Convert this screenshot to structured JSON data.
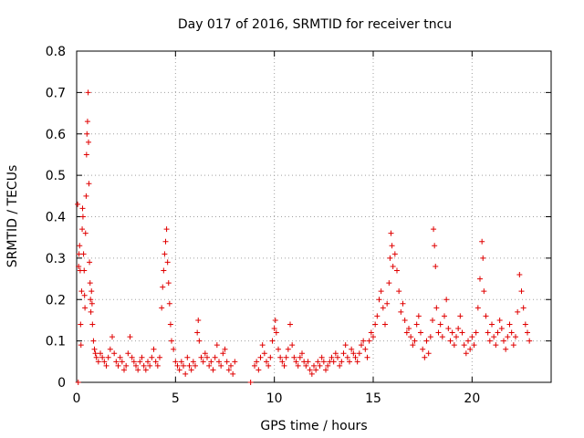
{
  "chart_data": {
    "type": "scatter",
    "title": "Day 017 of 2016, SRMTID for receiver tncu",
    "xlabel": "GPS time / hours",
    "ylabel": "SRMTID / TECUs",
    "xlim": [
      0,
      24
    ],
    "ylim": [
      0,
      0.8
    ],
    "xticks": [
      0,
      5,
      10,
      15,
      20
    ],
    "xtick_labels": [
      "0",
      "5",
      "10",
      "15",
      "20"
    ],
    "yticks": [
      0,
      0.1,
      0.2,
      0.3,
      0.4,
      0.5,
      0.6,
      0.7,
      0.8
    ],
    "ytick_labels": [
      "0",
      "0.1",
      "0.2",
      "0.3",
      "0.4",
      "0.5",
      "0.6",
      "0.7",
      "0.8"
    ],
    "grid": true,
    "marker": "+",
    "color": "#e00000",
    "series": [
      {
        "name": "SRMTID",
        "points": [
          [
            0.05,
            0.43
          ],
          [
            0.08,
            0.0
          ],
          [
            0.1,
            0.28
          ],
          [
            0.12,
            0.31
          ],
          [
            0.15,
            0.33
          ],
          [
            0.18,
            0.27
          ],
          [
            0.2,
            0.14
          ],
          [
            0.22,
            0.09
          ],
          [
            0.25,
            0.22
          ],
          [
            0.28,
            0.37
          ],
          [
            0.3,
            0.42
          ],
          [
            0.32,
            0.4
          ],
          [
            0.35,
            0.31
          ],
          [
            0.38,
            0.27
          ],
          [
            0.4,
            0.21
          ],
          [
            0.42,
            0.18
          ],
          [
            0.45,
            0.36
          ],
          [
            0.48,
            0.45
          ],
          [
            0.5,
            0.55
          ],
          [
            0.52,
            0.6
          ],
          [
            0.55,
            0.63
          ],
          [
            0.58,
            0.7
          ],
          [
            0.6,
            0.58
          ],
          [
            0.62,
            0.48
          ],
          [
            0.65,
            0.29
          ],
          [
            0.68,
            0.24
          ],
          [
            0.7,
            0.2
          ],
          [
            0.72,
            0.17
          ],
          [
            0.75,
            0.22
          ],
          [
            0.78,
            0.19
          ],
          [
            0.8,
            0.14
          ],
          [
            0.85,
            0.1
          ],
          [
            0.9,
            0.08
          ],
          [
            0.95,
            0.07
          ],
          [
            1.0,
            0.06
          ],
          [
            1.1,
            0.05
          ],
          [
            1.2,
            0.07
          ],
          [
            1.3,
            0.06
          ],
          [
            1.4,
            0.05
          ],
          [
            1.5,
            0.04
          ],
          [
            1.6,
            0.06
          ],
          [
            1.7,
            0.08
          ],
          [
            1.8,
            0.11
          ],
          [
            1.9,
            0.07
          ],
          [
            2.0,
            0.05
          ],
          [
            2.1,
            0.04
          ],
          [
            2.2,
            0.06
          ],
          [
            2.3,
            0.05
          ],
          [
            2.4,
            0.03
          ],
          [
            2.5,
            0.04
          ],
          [
            2.6,
            0.07
          ],
          [
            2.7,
            0.11
          ],
          [
            2.8,
            0.06
          ],
          [
            2.9,
            0.05
          ],
          [
            3.0,
            0.04
          ],
          [
            3.1,
            0.03
          ],
          [
            3.2,
            0.05
          ],
          [
            3.3,
            0.06
          ],
          [
            3.4,
            0.04
          ],
          [
            3.5,
            0.03
          ],
          [
            3.6,
            0.05
          ],
          [
            3.7,
            0.04
          ],
          [
            3.8,
            0.06
          ],
          [
            3.9,
            0.08
          ],
          [
            4.0,
            0.05
          ],
          [
            4.1,
            0.04
          ],
          [
            4.2,
            0.06
          ],
          [
            4.3,
            0.18
          ],
          [
            4.35,
            0.23
          ],
          [
            4.4,
            0.27
          ],
          [
            4.45,
            0.31
          ],
          [
            4.5,
            0.34
          ],
          [
            4.55,
            0.37
          ],
          [
            4.6,
            0.29
          ],
          [
            4.65,
            0.24
          ],
          [
            4.7,
            0.19
          ],
          [
            4.75,
            0.14
          ],
          [
            4.8,
            0.1
          ],
          [
            4.9,
            0.08
          ],
          [
            5.0,
            0.05
          ],
          [
            5.1,
            0.04
          ],
          [
            5.2,
            0.03
          ],
          [
            5.3,
            0.05
          ],
          [
            5.4,
            0.04
          ],
          [
            5.5,
            0.02
          ],
          [
            5.6,
            0.06
          ],
          [
            5.7,
            0.04
          ],
          [
            5.8,
            0.03
          ],
          [
            5.9,
            0.05
          ],
          [
            6.0,
            0.04
          ],
          [
            6.1,
            0.12
          ],
          [
            6.15,
            0.15
          ],
          [
            6.2,
            0.1
          ],
          [
            6.3,
            0.06
          ],
          [
            6.4,
            0.05
          ],
          [
            6.5,
            0.07
          ],
          [
            6.6,
            0.06
          ],
          [
            6.7,
            0.04
          ],
          [
            6.8,
            0.05
          ],
          [
            6.9,
            0.03
          ],
          [
            7.0,
            0.06
          ],
          [
            7.1,
            0.09
          ],
          [
            7.2,
            0.05
          ],
          [
            7.3,
            0.04
          ],
          [
            7.4,
            0.07
          ],
          [
            7.5,
            0.08
          ],
          [
            7.6,
            0.05
          ],
          [
            7.7,
            0.03
          ],
          [
            7.8,
            0.04
          ],
          [
            7.9,
            0.02
          ],
          [
            8.0,
            0.05
          ],
          [
            8.8,
            0.0
          ],
          [
            9.0,
            0.04
          ],
          [
            9.1,
            0.05
          ],
          [
            9.2,
            0.03
          ],
          [
            9.3,
            0.06
          ],
          [
            9.4,
            0.09
          ],
          [
            9.5,
            0.07
          ],
          [
            9.6,
            0.05
          ],
          [
            9.7,
            0.04
          ],
          [
            9.8,
            0.06
          ],
          [
            9.9,
            0.1
          ],
          [
            10.0,
            0.13
          ],
          [
            10.05,
            0.15
          ],
          [
            10.1,
            0.12
          ],
          [
            10.2,
            0.08
          ],
          [
            10.3,
            0.06
          ],
          [
            10.4,
            0.05
          ],
          [
            10.5,
            0.04
          ],
          [
            10.6,
            0.06
          ],
          [
            10.7,
            0.08
          ],
          [
            10.8,
            0.14
          ],
          [
            10.9,
            0.09
          ],
          [
            11.0,
            0.06
          ],
          [
            11.1,
            0.05
          ],
          [
            11.2,
            0.04
          ],
          [
            11.3,
            0.06
          ],
          [
            11.4,
            0.07
          ],
          [
            11.5,
            0.05
          ],
          [
            11.6,
            0.04
          ],
          [
            11.7,
            0.05
          ],
          [
            11.8,
            0.03
          ],
          [
            11.9,
            0.02
          ],
          [
            12.0,
            0.04
          ],
          [
            12.1,
            0.03
          ],
          [
            12.2,
            0.05
          ],
          [
            12.3,
            0.04
          ],
          [
            12.4,
            0.06
          ],
          [
            12.5,
            0.05
          ],
          [
            12.6,
            0.03
          ],
          [
            12.7,
            0.04
          ],
          [
            12.8,
            0.05
          ],
          [
            12.9,
            0.06
          ],
          [
            13.0,
            0.05
          ],
          [
            13.1,
            0.07
          ],
          [
            13.2,
            0.06
          ],
          [
            13.3,
            0.04
          ],
          [
            13.4,
            0.05
          ],
          [
            13.5,
            0.07
          ],
          [
            13.6,
            0.09
          ],
          [
            13.7,
            0.06
          ],
          [
            13.8,
            0.05
          ],
          [
            13.9,
            0.08
          ],
          [
            14.0,
            0.07
          ],
          [
            14.1,
            0.06
          ],
          [
            14.2,
            0.05
          ],
          [
            14.3,
            0.07
          ],
          [
            14.4,
            0.09
          ],
          [
            14.5,
            0.1
          ],
          [
            14.6,
            0.08
          ],
          [
            14.7,
            0.06
          ],
          [
            14.8,
            0.1
          ],
          [
            14.9,
            0.12
          ],
          [
            15.0,
            0.11
          ],
          [
            15.1,
            0.14
          ],
          [
            15.2,
            0.16
          ],
          [
            15.3,
            0.2
          ],
          [
            15.4,
            0.22
          ],
          [
            15.5,
            0.18
          ],
          [
            15.6,
            0.14
          ],
          [
            15.7,
            0.19
          ],
          [
            15.8,
            0.24
          ],
          [
            15.85,
            0.3
          ],
          [
            15.9,
            0.36
          ],
          [
            15.95,
            0.33
          ],
          [
            16.0,
            0.28
          ],
          [
            16.1,
            0.31
          ],
          [
            16.2,
            0.27
          ],
          [
            16.3,
            0.22
          ],
          [
            16.4,
            0.17
          ],
          [
            16.5,
            0.19
          ],
          [
            16.6,
            0.15
          ],
          [
            16.7,
            0.12
          ],
          [
            16.8,
            0.13
          ],
          [
            16.9,
            0.11
          ],
          [
            17.0,
            0.09
          ],
          [
            17.1,
            0.1
          ],
          [
            17.2,
            0.14
          ],
          [
            17.3,
            0.16
          ],
          [
            17.4,
            0.12
          ],
          [
            17.5,
            0.08
          ],
          [
            17.6,
            0.06
          ],
          [
            17.7,
            0.1
          ],
          [
            17.8,
            0.07
          ],
          [
            17.9,
            0.11
          ],
          [
            18.0,
            0.15
          ],
          [
            18.05,
            0.37
          ],
          [
            18.1,
            0.33
          ],
          [
            18.15,
            0.28
          ],
          [
            18.2,
            0.18
          ],
          [
            18.3,
            0.12
          ],
          [
            18.4,
            0.14
          ],
          [
            18.5,
            0.11
          ],
          [
            18.6,
            0.16
          ],
          [
            18.7,
            0.2
          ],
          [
            18.8,
            0.13
          ],
          [
            18.9,
            0.1
          ],
          [
            19.0,
            0.12
          ],
          [
            19.1,
            0.09
          ],
          [
            19.2,
            0.11
          ],
          [
            19.3,
            0.13
          ],
          [
            19.4,
            0.16
          ],
          [
            19.5,
            0.12
          ],
          [
            19.6,
            0.09
          ],
          [
            19.7,
            0.07
          ],
          [
            19.8,
            0.1
          ],
          [
            19.9,
            0.08
          ],
          [
            20.0,
            0.11
          ],
          [
            20.1,
            0.09
          ],
          [
            20.2,
            0.12
          ],
          [
            20.3,
            0.18
          ],
          [
            20.4,
            0.25
          ],
          [
            20.5,
            0.34
          ],
          [
            20.55,
            0.3
          ],
          [
            20.6,
            0.22
          ],
          [
            20.7,
            0.16
          ],
          [
            20.8,
            0.12
          ],
          [
            20.9,
            0.1
          ],
          [
            21.0,
            0.14
          ],
          [
            21.1,
            0.11
          ],
          [
            21.2,
            0.09
          ],
          [
            21.3,
            0.12
          ],
          [
            21.4,
            0.15
          ],
          [
            21.5,
            0.13
          ],
          [
            21.6,
            0.1
          ],
          [
            21.7,
            0.08
          ],
          [
            21.8,
            0.11
          ],
          [
            21.9,
            0.14
          ],
          [
            22.0,
            0.12
          ],
          [
            22.1,
            0.09
          ],
          [
            22.2,
            0.11
          ],
          [
            22.3,
            0.17
          ],
          [
            22.4,
            0.26
          ],
          [
            22.5,
            0.22
          ],
          [
            22.6,
            0.18
          ],
          [
            22.7,
            0.14
          ],
          [
            22.8,
            0.12
          ],
          [
            22.9,
            0.1
          ]
        ]
      }
    ]
  }
}
